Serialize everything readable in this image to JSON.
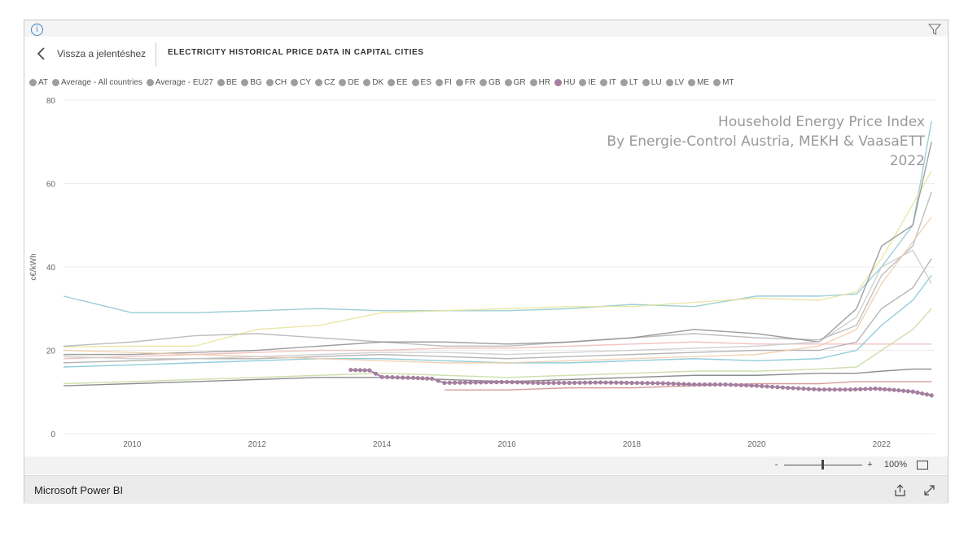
{
  "report": {
    "back_label": "Vissza a jelentéshez",
    "title": "ELECTRICITY HISTORICAL PRICE DATA IN CAPITAL CITIES"
  },
  "legend": [
    {
      "label": "AT",
      "color": "#9e9e9e"
    },
    {
      "label": "Average - All countries",
      "color": "#9e9e9e"
    },
    {
      "label": "Average - EU27",
      "color": "#9e9e9e"
    },
    {
      "label": "BE",
      "color": "#9e9e9e"
    },
    {
      "label": "BG",
      "color": "#9e9e9e"
    },
    {
      "label": "CH",
      "color": "#9e9e9e"
    },
    {
      "label": "CY",
      "color": "#9e9e9e"
    },
    {
      "label": "CZ",
      "color": "#9e9e9e"
    },
    {
      "label": "DE",
      "color": "#9e9e9e"
    },
    {
      "label": "DK",
      "color": "#9e9e9e"
    },
    {
      "label": "EE",
      "color": "#9e9e9e"
    },
    {
      "label": "ES",
      "color": "#9e9e9e"
    },
    {
      "label": "FI",
      "color": "#9e9e9e"
    },
    {
      "label": "FR",
      "color": "#9e9e9e"
    },
    {
      "label": "GB",
      "color": "#9e9e9e"
    },
    {
      "label": "GR",
      "color": "#9e9e9e"
    },
    {
      "label": "HR",
      "color": "#9e9e9e"
    },
    {
      "label": "HU",
      "color": "#a57fa0"
    },
    {
      "label": "IE",
      "color": "#9e9e9e"
    },
    {
      "label": "IT",
      "color": "#9e9e9e"
    },
    {
      "label": "LT",
      "color": "#9e9e9e"
    },
    {
      "label": "LU",
      "color": "#9e9e9e"
    },
    {
      "label": "LV",
      "color": "#9e9e9e"
    },
    {
      "label": "ME",
      "color": "#9e9e9e"
    },
    {
      "label": "MT",
      "color": "#9e9e9e"
    }
  ],
  "chart_data": {
    "type": "line",
    "title": "",
    "xlabel": "",
    "ylabel": "c€/kWh",
    "xlim": [
      2008.9,
      2022.85
    ],
    "ylim": [
      0,
      80
    ],
    "x_ticks": [
      "2010",
      "2012",
      "2014",
      "2016",
      "2018",
      "2020",
      "2022"
    ],
    "y_ticks": [
      "0",
      "20",
      "40",
      "60",
      "80"
    ],
    "grid": true,
    "watermark": [
      "Household Energy Price Index",
      "By Energie-Control Austria, MEKH & VaasaETT",
      "2022"
    ],
    "highlight_series": "HU",
    "series": [
      {
        "name": "HU",
        "color": "#a57fa0",
        "x": [
          2013.5,
          2013.8,
          2014.0,
          2014.5,
          2014.8,
          2015.0,
          2015.5,
          2016.0,
          2016.5,
          2017.0,
          2017.5,
          2018.0,
          2018.5,
          2019.0,
          2019.5,
          2020.0,
          2020.5,
          2021.0,
          2021.5,
          2021.9,
          2022.2,
          2022.5,
          2022.8
        ],
        "y": [
          15.3,
          15.2,
          13.6,
          13.4,
          13.2,
          12.2,
          12.3,
          12.4,
          12.2,
          12.2,
          12.3,
          12.2,
          12.1,
          11.8,
          11.8,
          11.5,
          11.0,
          10.6,
          10.6,
          10.8,
          10.5,
          10.1,
          9.2
        ]
      },
      {
        "x": [
          2008.9,
          2010,
          2011,
          2012,
          2013,
          2014,
          2015,
          2016,
          2017,
          2018,
          2019,
          2020,
          2021,
          2021.6,
          2022,
          2022.5,
          2022.8
        ],
        "y": [
          33,
          29,
          29,
          29.5,
          30,
          29.5,
          29.5,
          29.5,
          30,
          31,
          30.5,
          33,
          33,
          33.5,
          40,
          50,
          75
        ]
      },
      {
        "x": [
          2008.9,
          2010,
          2011,
          2012,
          2013,
          2014,
          2015,
          2016,
          2017,
          2018,
          2019,
          2020,
          2021,
          2021.6,
          2022,
          2022.5,
          2022.8
        ],
        "y": [
          20.8,
          21,
          21,
          25,
          26,
          29,
          29.5,
          30,
          30.5,
          30.5,
          31.5,
          32.5,
          32,
          34,
          42,
          55,
          63
        ]
      },
      {
        "x": [
          2008.9,
          2010,
          2011,
          2012,
          2013,
          2014,
          2015,
          2016,
          2017,
          2018,
          2019,
          2020,
          2021,
          2021.6,
          2022,
          2022.5,
          2022.8
        ],
        "y": [
          21,
          22,
          23.5,
          24,
          23,
          22,
          21,
          21,
          22,
          23,
          24,
          23,
          22.5,
          26,
          38,
          45,
          58
        ]
      },
      {
        "x": [
          2008.9,
          2010,
          2011,
          2012,
          2013,
          2014,
          2015,
          2016,
          2017,
          2018,
          2019,
          2020,
          2021,
          2021.6,
          2022,
          2022.5,
          2022.8
        ],
        "y": [
          19,
          19,
          19.5,
          20,
          21,
          22,
          22,
          21.5,
          22,
          23,
          25,
          24,
          22,
          30,
          45,
          50,
          70
        ]
      },
      {
        "x": [
          2008.9,
          2010,
          2011,
          2012,
          2013,
          2014,
          2015,
          2016,
          2017,
          2018,
          2019,
          2020,
          2021,
          2021.6,
          2022,
          2022.5,
          2022.8
        ],
        "y": [
          18,
          18.5,
          19,
          19.5,
          20,
          20,
          20.5,
          20.5,
          21,
          21.5,
          22,
          21.5,
          21.5,
          21.5,
          21.5,
          21.5,
          21.5
        ]
      },
      {
        "x": [
          2008.9,
          2010,
          2011,
          2012,
          2013,
          2014,
          2015,
          2016,
          2017,
          2018,
          2019,
          2020,
          2021,
          2021.6,
          2022,
          2022.5,
          2022.8
        ],
        "y": [
          17,
          17.5,
          18,
          18,
          18.5,
          19,
          18.5,
          18,
          18.5,
          19,
          19.5,
          20,
          20,
          22,
          30,
          35,
          42
        ]
      },
      {
        "x": [
          2008.9,
          2010,
          2011,
          2012,
          2013,
          2014,
          2015,
          2016,
          2017,
          2018,
          2019,
          2020,
          2021,
          2021.6,
          2022,
          2022.5,
          2022.8
        ],
        "y": [
          16,
          16.5,
          17,
          17.5,
          18,
          18,
          17.5,
          17,
          17,
          17.5,
          18,
          17.5,
          18,
          20,
          26,
          32,
          38
        ]
      },
      {
        "x": [
          2008.9,
          2010,
          2011,
          2012,
          2013,
          2014,
          2015,
          2016,
          2017,
          2018,
          2019,
          2020,
          2021,
          2021.6,
          2022,
          2022.5,
          2022.8
        ],
        "y": [
          20,
          19.5,
          19,
          18.5,
          18,
          17.5,
          17,
          17,
          17.5,
          18,
          18.5,
          19,
          21,
          25,
          36,
          46,
          52
        ]
      },
      {
        "x": [
          2008.9,
          2010,
          2011,
          2012,
          2013,
          2014,
          2015,
          2016,
          2017,
          2018,
          2019,
          2020,
          2021,
          2021.6,
          2022,
          2022.5,
          2022.8
        ],
        "y": [
          12,
          12.5,
          13,
          13.5,
          14,
          14.5,
          14,
          13.5,
          14,
          14.5,
          15,
          15,
          15.5,
          16,
          20,
          25,
          30
        ]
      },
      {
        "x": [
          2008.9,
          2010,
          2011,
          2012,
          2013,
          2014,
          2015,
          2016,
          2017,
          2018,
          2019,
          2020,
          2021,
          2021.6,
          2022,
          2022.5,
          2022.8
        ],
        "y": [
          11.5,
          12,
          12.5,
          13,
          13.5,
          13.5,
          13,
          12.5,
          13,
          13.5,
          14,
          14,
          14.5,
          14.5,
          15,
          15.5,
          15.5
        ]
      },
      {
        "x": [
          2015,
          2016,
          2017,
          2018,
          2019,
          2020,
          2021,
          2021.6,
          2022,
          2022.5,
          2022.8
        ],
        "y": [
          10.5,
          10.5,
          11,
          11,
          11.5,
          12,
          12,
          12.5,
          12.5,
          12.5,
          12.5
        ]
      },
      {
        "x": [
          2008.9,
          2010,
          2011,
          2012,
          2013,
          2014,
          2015,
          2016,
          2017,
          2018,
          2019,
          2020,
          2021,
          2021.6,
          2022,
          2022.5,
          2022.8
        ],
        "y": [
          18.5,
          18,
          18,
          18.5,
          19,
          19.5,
          19.5,
          19,
          19.5,
          20,
          20.5,
          21,
          22,
          28,
          40,
          44,
          36
        ]
      }
    ]
  },
  "toolbar": {
    "zoom_minus": "-",
    "zoom_plus": "+",
    "zoom_level": "100%"
  },
  "footer": {
    "brand": "Microsoft Power BI"
  }
}
